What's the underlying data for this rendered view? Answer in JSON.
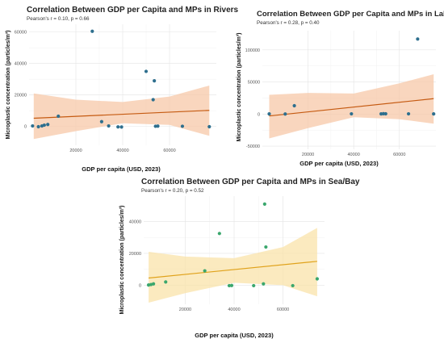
{
  "chart_data": [
    {
      "type": "scatter",
      "title": "Correlation Between GDP per Capita and MPs in Rivers",
      "subtitle": "Pearson's r = 0.10, p = 0.66",
      "xlabel": "GDP per capita (USD, 2023)",
      "ylabel": "Microplastic concentration (particles/m³)",
      "xlim": [
        0,
        80000
      ],
      "ylim": [
        -12000,
        65000
      ],
      "xticks": [
        20000,
        40000,
        60000
      ],
      "yticks": [
        0,
        20000,
        40000,
        60000
      ],
      "point_color": "#2e6f8e",
      "line_color": "#c55a11",
      "band_color": "#f7c8a8",
      "points": [
        [
          1500,
          300
        ],
        [
          4000,
          -200
        ],
        [
          5500,
          300
        ],
        [
          6500,
          800
        ],
        [
          8000,
          1200
        ],
        [
          12500,
          6500
        ],
        [
          27000,
          60500
        ],
        [
          31000,
          3000
        ],
        [
          34000,
          300
        ],
        [
          38000,
          -300
        ],
        [
          39500,
          -400
        ],
        [
          50000,
          35000
        ],
        [
          53000,
          17000
        ],
        [
          53500,
          29000
        ],
        [
          54000,
          100
        ],
        [
          55000,
          200
        ],
        [
          65500,
          100
        ],
        [
          77000,
          -200
        ]
      ],
      "fit": {
        "x": [
          2000,
          77000
        ],
        "y": [
          5200,
          10200
        ]
      },
      "band": {
        "x": [
          2000,
          20000,
          40000,
          60000,
          77000
        ],
        "upper": [
          21000,
          17000,
          15500,
          19000,
          26000
        ],
        "lower": [
          -8000,
          -3000,
          2000,
          1000,
          -6000
        ]
      }
    },
    {
      "type": "scatter",
      "title": "Correlation Between GDP per Capita and MPs in Lakes",
      "subtitle": "Pearson's r = 0.28, p = 0.40",
      "xlabel": "GDP per capita (USD, 2023)",
      "ylabel": "Microplastic concentration (particles/m³)",
      "xlim": [
        0,
        76000
      ],
      "ylim": [
        -55000,
        130000
      ],
      "xticks": [
        20000,
        40000,
        60000
      ],
      "yticks": [
        -50000,
        0,
        50000,
        100000
      ],
      "point_color": "#2e6f8e",
      "line_color": "#c55a11",
      "band_color": "#f7c8a8",
      "points": [
        [
          3000,
          200
        ],
        [
          10000,
          100
        ],
        [
          14000,
          13000
        ],
        [
          39000,
          300
        ],
        [
          52000,
          200
        ],
        [
          53000,
          500
        ],
        [
          54000,
          400
        ],
        [
          64000,
          300
        ],
        [
          68000,
          117000
        ],
        [
          75000,
          200
        ]
      ],
      "fit": {
        "x": [
          3000,
          75000
        ],
        "y": [
          -3000,
          24000
        ]
      },
      "band": {
        "x": [
          3000,
          20000,
          40000,
          60000,
          75000
        ],
        "upper": [
          30000,
          33000,
          32000,
          48000,
          62000
        ],
        "lower": [
          -38000,
          -22000,
          -5000,
          -8000,
          -15000
        ]
      }
    },
    {
      "type": "scatter",
      "title": "Correlation Between GDP per Capita and MPs in Sea/Bay",
      "subtitle": "Pearson's r = 0.20, p = 0.52",
      "xlabel": "GDP per capita (USD, 2023)",
      "ylabel": "Microplastic concentration (particles/m³)",
      "xlim": [
        3000,
        77000
      ],
      "ylim": [
        -12000,
        56000
      ],
      "xticks": [
        20000,
        40000,
        60000
      ],
      "yticks": [
        0,
        20000,
        40000
      ],
      "point_color": "#3aa76d",
      "line_color": "#e0a21b",
      "band_color": "#f9e3a9",
      "points": [
        [
          5000,
          100
        ],
        [
          6000,
          400
        ],
        [
          7000,
          800
        ],
        [
          12000,
          2000
        ],
        [
          28000,
          9000
        ],
        [
          34000,
          32500
        ],
        [
          38000,
          -300
        ],
        [
          39000,
          -200
        ],
        [
          48000,
          -300
        ],
        [
          52000,
          800
        ],
        [
          52500,
          51000
        ],
        [
          53000,
          24000
        ],
        [
          64000,
          -300
        ],
        [
          74000,
          4000
        ]
      ],
      "fit": {
        "x": [
          5000,
          74000
        ],
        "y": [
          4500,
          15000
        ]
      },
      "band": {
        "x": [
          5000,
          20000,
          40000,
          60000,
          74000
        ],
        "upper": [
          21000,
          18000,
          17000,
          24000,
          36000
        ],
        "lower": [
          -11000,
          -5000,
          1500,
          0,
          -7000
        ]
      }
    }
  ]
}
